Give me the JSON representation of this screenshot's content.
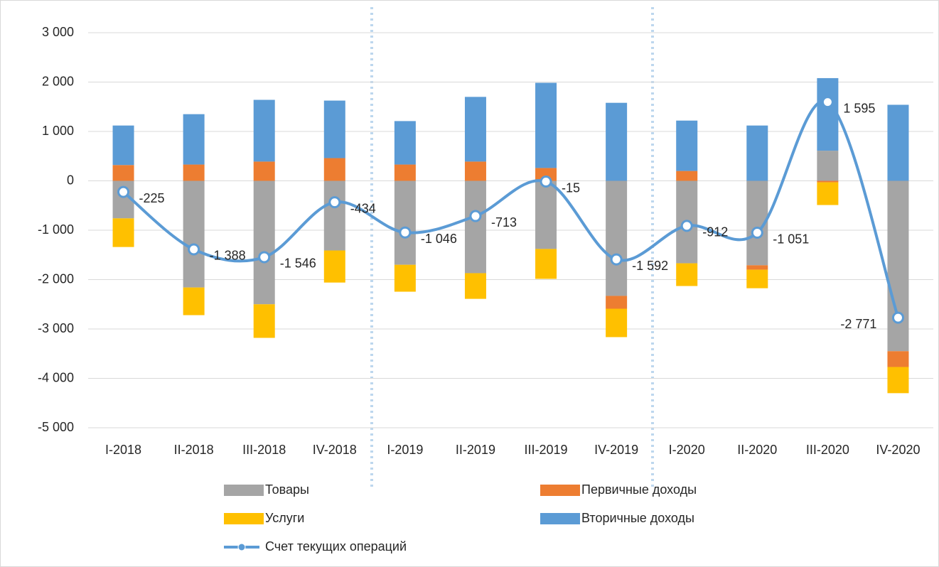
{
  "chart_data": {
    "type": "bar",
    "stacked": true,
    "categories": [
      "I-2018",
      "II-2018",
      "III-2018",
      "IV-2018",
      "I-2019",
      "II-2019",
      "III-2019",
      "IV-2019",
      "I-2020",
      "II-2020",
      "III-2020",
      "IV-2020"
    ],
    "series": [
      {
        "name": "Товары",
        "color": "#a5a5a5",
        "values": [
          -760,
          -2160,
          -2500,
          -1410,
          -1700,
          -1870,
          -1380,
          -2330,
          -1670,
          -1710,
          610,
          -3450
        ]
      },
      {
        "name": "Первичные доходы",
        "color": "#ed7d31",
        "values": [
          320,
          330,
          390,
          460,
          330,
          390,
          260,
          -260,
          200,
          -90,
          -30,
          -320
        ]
      },
      {
        "name": "Услуги",
        "color": "#ffc000",
        "values": [
          -580,
          -560,
          -680,
          -650,
          -545,
          -520,
          -605,
          -575,
          -460,
          -375,
          -460,
          -530
        ]
      },
      {
        "name": "Вторичные доходы",
        "color": "#5b9bd5",
        "values": [
          800,
          1020,
          1250,
          1165,
          880,
          1310,
          1725,
          1580,
          1020,
          1120,
          1470,
          1540
        ]
      },
      {
        "name": "Счет текущих операций",
        "type": "line",
        "color": "#5b9bd5",
        "values": [
          -225,
          -1388,
          -1546,
          -434,
          -1046,
          -713,
          -15,
          -1592,
          -912,
          -1051,
          1595,
          -2771
        ],
        "value_labels": [
          "-225",
          "-1 388",
          "-1 546",
          "-434",
          "-1 046",
          "-713",
          "-15",
          "-1 592",
          "-912",
          "-1 051",
          "1 595",
          "-2 771"
        ]
      }
    ],
    "ylim": [
      -5000,
      3000
    ],
    "yticks": [
      {
        "value": -5000,
        "label": "-5 000"
      },
      {
        "value": -4000,
        "label": "-4 000"
      },
      {
        "value": -3000,
        "label": "-3 000"
      },
      {
        "value": -2000,
        "label": "-2 000"
      },
      {
        "value": -1000,
        "label": "-1 000"
      },
      0,
      {
        "value": 1000,
        "label": "1 000"
      },
      {
        "value": 2000,
        "label": "2 000"
      },
      {
        "value": 3000,
        "label": "3 000"
      }
    ],
    "grid": true,
    "legend": "bottom"
  }
}
